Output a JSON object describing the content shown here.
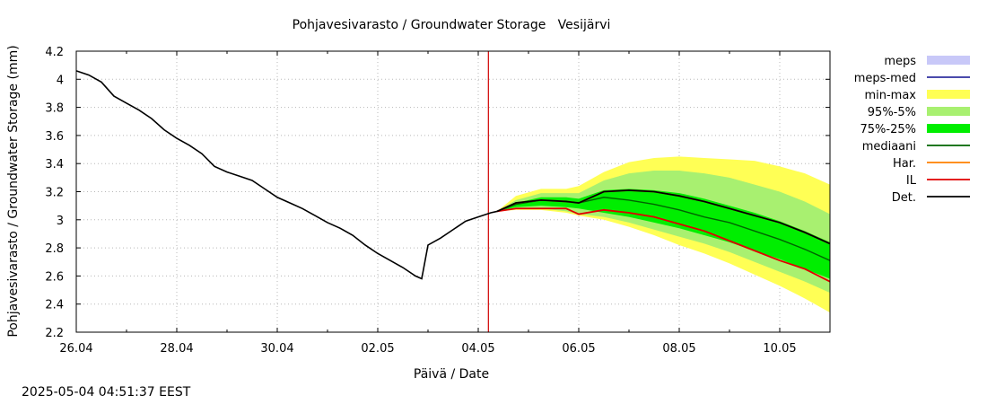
{
  "chart_data": {
    "type": "line",
    "title": "Pohjavesivarasto / Groundwater Storage   Vesijärvi",
    "xlabel": "Päivä / Date",
    "ylabel": "Pohjavesivarasto / Groundwater Storage (mm)",
    "xlim": [
      "2025-04-26",
      "2025-05-11"
    ],
    "ylim": [
      2.2,
      4.2
    ],
    "x_tick_labels": [
      "26.04",
      "28.04",
      "30.04",
      "02.05",
      "04.05",
      "06.05",
      "08.05",
      "10.05"
    ],
    "y_tick_labels": [
      "2.2",
      "2.4",
      "2.6",
      "2.8",
      "3",
      "3.2",
      "3.4",
      "3.6",
      "3.8",
      "4",
      "4.2"
    ],
    "grid": true,
    "legend_position": "right",
    "forecast_start": "2025-05-04 04:51",
    "legend": [
      {
        "label": "meps",
        "kind": "band",
        "color": "#c8c8f8"
      },
      {
        "label": "meps-med",
        "kind": "line",
        "color": "#3030a0"
      },
      {
        "label": "min-max",
        "kind": "band",
        "color": "#ffff55"
      },
      {
        "label": "95%-5%",
        "kind": "band",
        "color": "#a8f070"
      },
      {
        "label": "75%-25%",
        "kind": "band",
        "color": "#00ee00"
      },
      {
        "label": "mediaani",
        "kind": "line",
        "color": "#006400"
      },
      {
        "label": "Har.",
        "kind": "line",
        "color": "#ff8000"
      },
      {
        "label": "IL",
        "kind": "line",
        "color": "#e00000"
      },
      {
        "label": "Det.",
        "kind": "line",
        "color": "#000000"
      }
    ],
    "history": {
      "x": [
        "04-26 00:00",
        "04-26 06:00",
        "04-26 12:00",
        "04-26 18:00",
        "04-27 00:00",
        "04-27 06:00",
        "04-27 12:00",
        "04-27 18:00",
        "04-28 00:00",
        "04-28 06:00",
        "04-28 12:00",
        "04-28 18:00",
        "04-29 00:00",
        "04-29 06:00",
        "04-29 12:00",
        "04-29 18:00",
        "04-30 00:00",
        "04-30 06:00",
        "04-30 12:00",
        "04-30 18:00",
        "05-01 00:00",
        "05-01 06:00",
        "05-01 12:00",
        "05-01 18:00",
        "05-02 00:00",
        "05-02 06:00",
        "05-02 12:00",
        "05-02 18:00",
        "05-02 21:00",
        "05-03 00:00",
        "05-03 06:00",
        "05-03 12:00",
        "05-03 18:00",
        "05-04 00:00",
        "05-04 06:00",
        "05-04 09:00"
      ],
      "y": [
        4.06,
        4.03,
        3.98,
        3.88,
        3.83,
        3.78,
        3.72,
        3.64,
        3.58,
        3.53,
        3.47,
        3.38,
        3.34,
        3.31,
        3.28,
        3.22,
        3.16,
        3.12,
        3.08,
        3.03,
        2.98,
        2.94,
        2.89,
        2.82,
        2.76,
        2.71,
        2.66,
        2.6,
        2.58,
        2.82,
        2.87,
        2.93,
        2.99,
        3.02,
        3.05,
        3.06
      ]
    },
    "forecast_x": [
      "05-04 09:00",
      "05-04 18:00",
      "05-05 06:00",
      "05-05 18:00",
      "05-06 00:00",
      "05-06 12:00",
      "05-07 00:00",
      "05-07 12:00",
      "05-08 00:00",
      "05-08 12:00",
      "05-09 00:00",
      "05-09 12:00",
      "05-10 00:00",
      "05-10 12:00",
      "05-11 00:00"
    ],
    "bands": {
      "min_max": {
        "low": [
          3.06,
          3.07,
          3.07,
          3.05,
          3.03,
          3.0,
          2.95,
          2.89,
          2.82,
          2.76,
          2.69,
          2.61,
          2.53,
          2.44,
          2.34
        ],
        "high": [
          3.06,
          3.17,
          3.22,
          3.22,
          3.24,
          3.34,
          3.41,
          3.44,
          3.45,
          3.44,
          3.43,
          3.42,
          3.38,
          3.33,
          3.25
        ]
      },
      "p95_5": {
        "low": [
          3.06,
          3.08,
          3.08,
          3.06,
          3.04,
          3.02,
          2.98,
          2.93,
          2.88,
          2.83,
          2.77,
          2.7,
          2.63,
          2.56,
          2.48
        ],
        "high": [
          3.06,
          3.14,
          3.19,
          3.19,
          3.19,
          3.28,
          3.33,
          3.35,
          3.35,
          3.33,
          3.3,
          3.25,
          3.2,
          3.13,
          3.04
        ]
      },
      "p75_25": {
        "low": [
          3.06,
          3.09,
          3.1,
          3.09,
          3.08,
          3.05,
          3.02,
          2.98,
          2.94,
          2.89,
          2.84,
          2.78,
          2.72,
          2.65,
          2.58
        ],
        "high": [
          3.06,
          3.12,
          3.16,
          3.16,
          3.15,
          3.21,
          3.22,
          3.21,
          3.19,
          3.15,
          3.1,
          3.05,
          2.99,
          2.92,
          2.84
        ]
      }
    },
    "lines": {
      "mediaani": [
        3.06,
        3.11,
        3.14,
        3.13,
        3.12,
        3.16,
        3.14,
        3.11,
        3.07,
        3.02,
        2.98,
        2.92,
        2.86,
        2.79,
        2.71
      ],
      "Har.": [
        3.06,
        3.12,
        3.14,
        3.13,
        3.12,
        3.2,
        3.21,
        3.2,
        3.17,
        3.13,
        3.08,
        3.03,
        2.98,
        2.91,
        2.83
      ],
      "IL": [
        3.06,
        3.08,
        3.08,
        3.08,
        3.04,
        3.07,
        3.05,
        3.02,
        2.97,
        2.92,
        2.85,
        2.78,
        2.71,
        2.65,
        2.56
      ],
      "Det.": [
        3.06,
        3.12,
        3.14,
        3.13,
        3.12,
        3.2,
        3.21,
        3.2,
        3.17,
        3.13,
        3.08,
        3.03,
        2.98,
        2.91,
        2.83
      ]
    }
  },
  "timestamp": "2025-05-04 04:51:37 EEST"
}
